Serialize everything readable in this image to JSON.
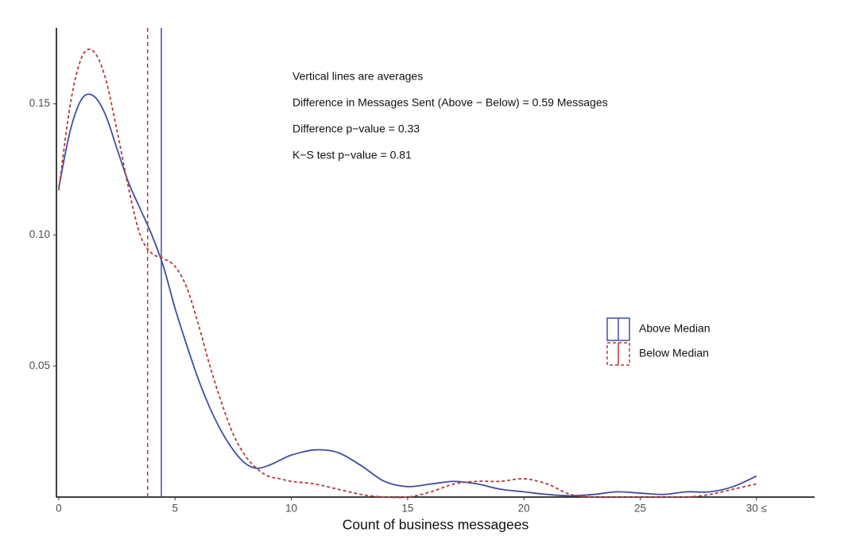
{
  "chart_data": {
    "type": "line",
    "x_label": "Count of business messagees",
    "annotations": [
      "Vertical lines are averages",
      "Difference in Messages Sent (Above − Below) = 0.59 Messages",
      "Difference p−value = 0.33",
      "K−S test p−value = 0.81"
    ],
    "x": [
      0,
      0.5,
      1,
      1.5,
      2,
      2.5,
      3,
      3.5,
      4,
      4.5,
      5,
      5.5,
      6,
      6.5,
      7,
      7.5,
      8,
      8.5,
      9,
      9.5,
      10,
      11,
      12,
      13,
      14,
      15,
      16,
      17,
      18,
      19,
      20,
      21,
      22,
      23,
      24,
      25,
      26,
      27,
      28,
      29,
      30
    ],
    "series": [
      {
        "name": "Above Median",
        "color": "#3f4ea3",
        "dash": false,
        "mean": 4.41,
        "values": [
          0.118,
          0.14,
          0.152,
          0.153,
          0.146,
          0.133,
          0.12,
          0.11,
          0.1,
          0.088,
          0.072,
          0.058,
          0.045,
          0.034,
          0.025,
          0.018,
          0.013,
          0.011,
          0.012,
          0.014,
          0.016,
          0.018,
          0.017,
          0.012,
          0.006,
          0.004,
          0.005,
          0.006,
          0.005,
          0.003,
          0.002,
          0.001,
          0.0005,
          0.001,
          0.002,
          0.0015,
          0.001,
          0.002,
          0.002,
          0.004,
          0.008
        ]
      },
      {
        "name": "Below Median",
        "color": "#b83a3a",
        "dash": true,
        "mean": 3.82,
        "values": [
          0.117,
          0.15,
          0.168,
          0.17,
          0.16,
          0.14,
          0.118,
          0.1,
          0.093,
          0.091,
          0.088,
          0.08,
          0.066,
          0.05,
          0.036,
          0.024,
          0.016,
          0.011,
          0.008,
          0.007,
          0.006,
          0.005,
          0.003,
          0.001,
          0,
          0,
          0.002,
          0.005,
          0.006,
          0.006,
          0.007,
          0.005,
          0.001,
          0,
          0,
          0,
          0,
          0,
          0.001,
          0.003,
          0.005
        ]
      }
    ],
    "xlim": [
      -0.1,
      32.5
    ],
    "ylim": [
      0,
      0.179
    ],
    "xticks": [
      0,
      5,
      10,
      15,
      20,
      25,
      {
        "value": 30,
        "label": "30 ≤"
      }
    ],
    "yticks": [
      0.05,
      {
        "value": 0.1,
        "label": "0.10"
      },
      0.15
    ],
    "grid": false,
    "legend": "right"
  }
}
